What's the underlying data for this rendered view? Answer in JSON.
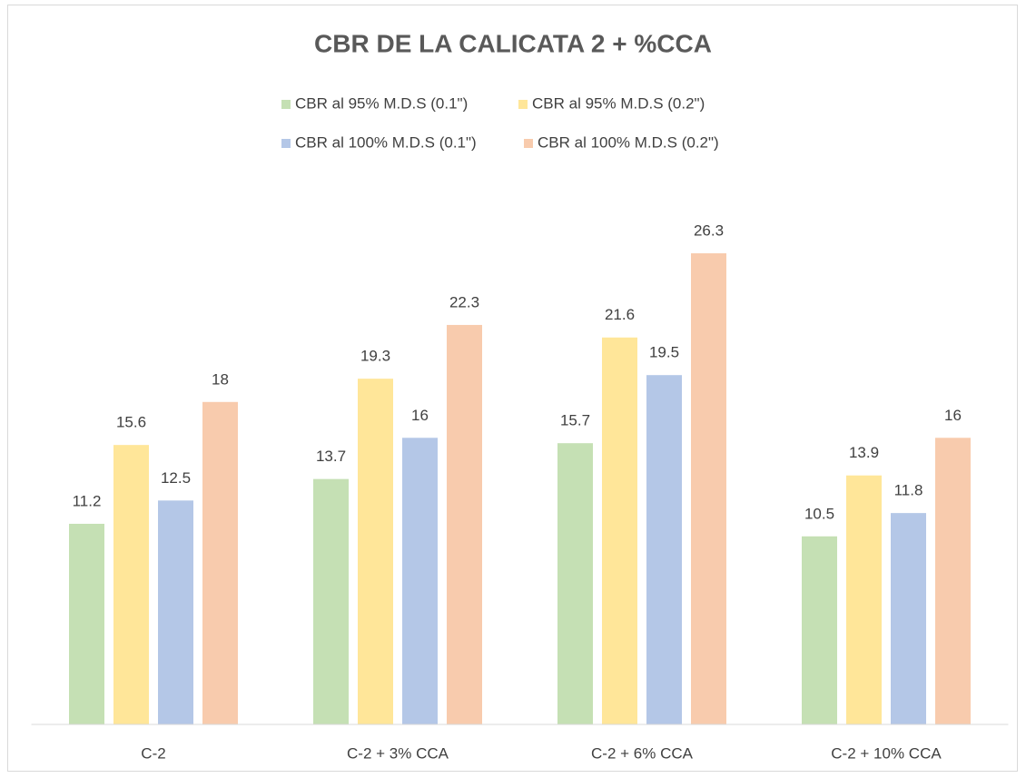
{
  "chart_data": {
    "type": "bar",
    "title": "CBR DE LA CALICATA 2 + %CCA",
    "categories": [
      "C-2",
      "C-2 + 3% CCA",
      "C-2 + 6% CCA",
      "C-2 + 10% CCA"
    ],
    "series": [
      {
        "name": "CBR al 95% M.D.S (0.1\")",
        "color": "#c5e0b4",
        "values": [
          11.2,
          13.7,
          15.7,
          10.5
        ]
      },
      {
        "name": "CBR al 95% M.D.S (0.2\")",
        "color": "#ffe699",
        "values": [
          15.6,
          19.3,
          21.6,
          13.9
        ]
      },
      {
        "name": "CBR al 100% M.D.S (0.1\")",
        "color": "#b4c7e7",
        "values": [
          12.5,
          16,
          19.5,
          11.8
        ]
      },
      {
        "name": "CBR al 100% M.D.S (0.2\")",
        "color": "#f8cbad",
        "values": [
          18,
          22.3,
          26.3,
          16
        ]
      }
    ],
    "ylim": [
      0,
      30
    ],
    "legend": "top",
    "grid": false
  }
}
